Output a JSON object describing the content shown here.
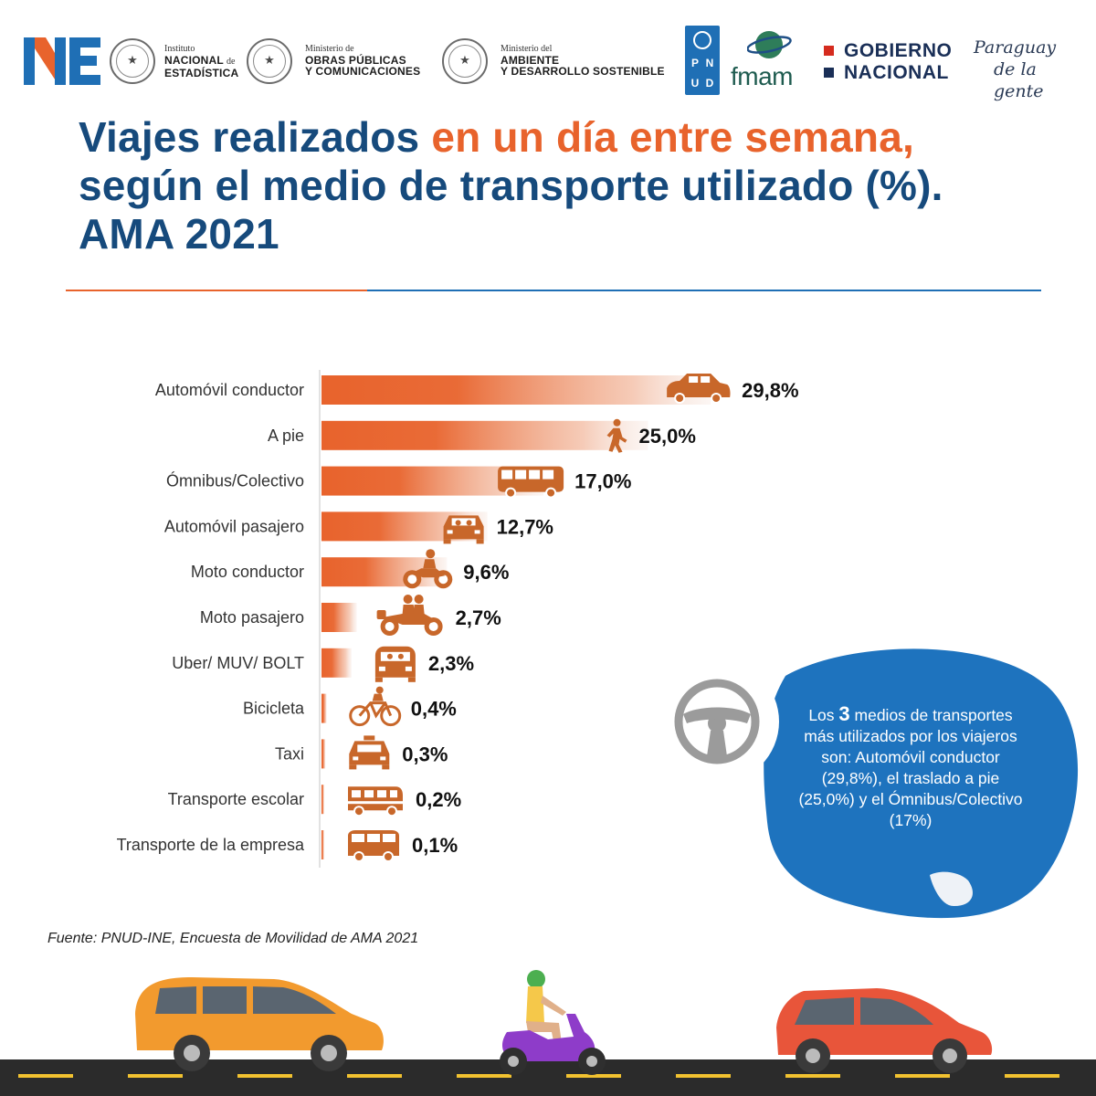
{
  "header": {
    "ne_logo": "NE",
    "ine": {
      "line1": "Instituto",
      "line2": "NACIONAL",
      "line2_suffix": "de",
      "line3": "ESTADÍSTICA"
    },
    "mopc": {
      "line1": "Ministerio de",
      "line2": "OBRAS PÚBLICAS",
      "line3": "Y COMUNICACIONES"
    },
    "mades": {
      "line1": "Ministerio del",
      "line2": "AMBIENTE",
      "line3": "Y DESARROLLO SOSTENIBLE"
    },
    "pnud_letters": [
      "P",
      "N",
      "U",
      "D"
    ],
    "fmam": "fmam",
    "gobierno": {
      "line1": "GOBIERNO",
      "line2": "NACIONAL"
    },
    "slogan": {
      "line1": "Paraguay",
      "line2": "de la gente"
    }
  },
  "title": {
    "part1": "Viajes realizados ",
    "highlight": "en un día entre semana,",
    "part2": "según el medio de transporte utilizado (%). AMA 2021"
  },
  "colors": {
    "bar": "#e8632c",
    "title": "#164a7c",
    "highlight": "#e8632c",
    "callout": "#1e73be",
    "icon": "#c8672a"
  },
  "chart_data": {
    "type": "bar",
    "orientation": "horizontal",
    "title": "Viajes realizados en un día entre semana, según el medio de transporte utilizado (%). AMA 2021",
    "unit": "%",
    "categories": [
      "Automóvil conductor",
      "A pie",
      "Ómnibus/Colectivo",
      "Automóvil pasajero",
      "Moto conductor",
      "Moto pasajero",
      "Uber/ MUV/ BOLT",
      "Bicicleta",
      "Taxi",
      "Transporte escolar",
      "Transporte de la empresa"
    ],
    "values": [
      29.8,
      25.0,
      17.0,
      12.7,
      9.6,
      2.7,
      2.3,
      0.4,
      0.3,
      0.2,
      0.1
    ],
    "value_labels": [
      "29,8%",
      "25,0%",
      "17,0%",
      "12,7%",
      "9,6%",
      "2,7%",
      "2,3%",
      "0,4%",
      "0,3%",
      "0,2%",
      "0,1%"
    ],
    "icons": [
      "car-icon",
      "walking-person-icon",
      "bus-icon",
      "car-front-icon",
      "motorcycle-icon",
      "motorcycle-passenger-icon",
      "van-front-icon",
      "bicycle-icon",
      "taxi-icon",
      "school-bus-icon",
      "company-van-icon"
    ],
    "grid": false
  },
  "callout": {
    "pre": "Los ",
    "number": "3",
    "text": " medios de transportes más utilizados por los viajeros son: Automóvil conductor (29,8%), el traslado a pie (25,0%)  y  el Ómnibus/Colectivo (17%)"
  },
  "source": "Fuente: PNUD-INE, Encuesta de Movilidad de AMA 2021"
}
